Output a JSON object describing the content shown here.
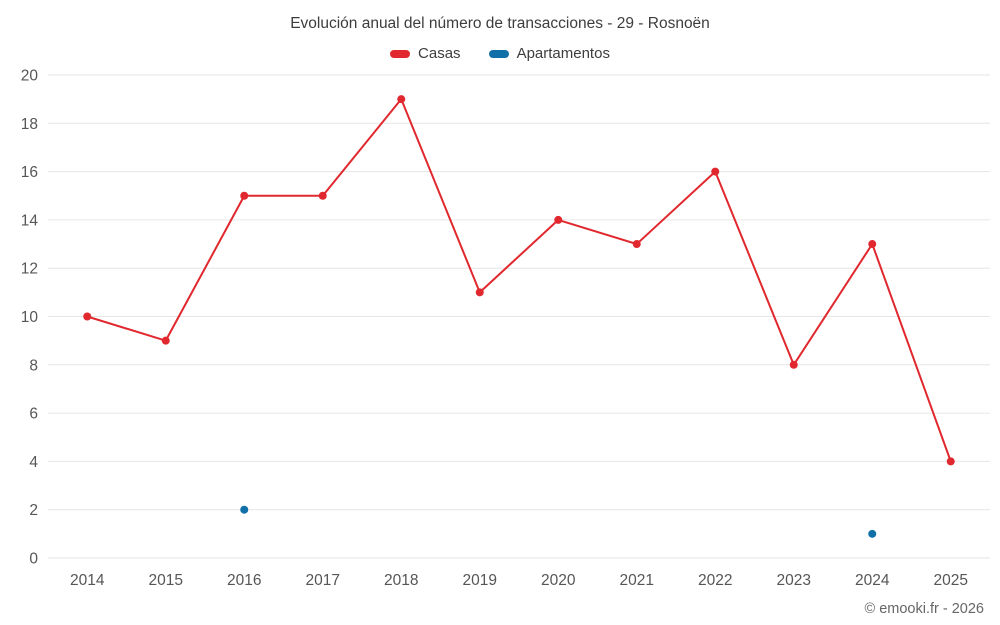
{
  "title": "Evolución anual del número de transacciones - 29 - Rosnoën",
  "footer": "© emooki.fr - 2026",
  "colors": {
    "casas": "#e0282e",
    "apartamentos": "#1170a8",
    "grid": "#e6e6e6",
    "tick_text": "#565656"
  },
  "chart_data": {
    "type": "line",
    "title": "Evolución anual del número de transacciones - 29 - Rosnoën",
    "categories": [
      "2014",
      "2015",
      "2016",
      "2017",
      "2018",
      "2019",
      "2020",
      "2021",
      "2022",
      "2023",
      "2024",
      "2025"
    ],
    "series": [
      {
        "name": "Casas",
        "color": "#e0282e",
        "values": [
          10,
          9,
          15,
          15,
          19,
          11,
          14,
          13,
          16,
          8,
          13,
          4
        ]
      },
      {
        "name": "Apartamentos",
        "color": "#1170a8",
        "values": [
          null,
          null,
          2,
          null,
          null,
          null,
          null,
          null,
          null,
          null,
          1,
          null
        ]
      }
    ],
    "xlabel": "",
    "ylabel": "",
    "ylim": [
      0,
      20
    ],
    "ytick_step": 2,
    "grid": true,
    "legend_position": "top"
  }
}
